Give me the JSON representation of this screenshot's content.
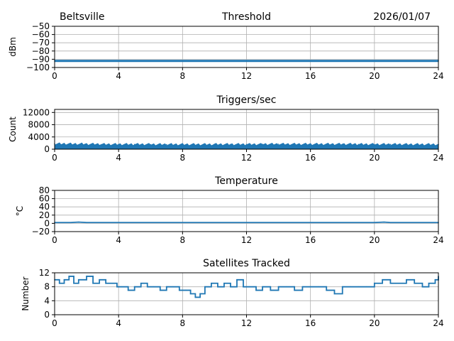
{
  "header": {
    "site": "Beltsville",
    "date": "2026/01/07"
  },
  "style": {
    "series_color": "#1f77b4",
    "grid_color": "#b0b0b0",
    "axis_color": "#000000",
    "background": "#ffffff"
  },
  "chart_data": [
    {
      "type": "line",
      "title": "Threshold",
      "xlabel": "",
      "ylabel": "dBm",
      "xlim": [
        0,
        24
      ],
      "ylim": [
        -100,
        -50
      ],
      "xticks": [
        0,
        4,
        8,
        12,
        16,
        20,
        24
      ],
      "yticks": [
        -100,
        -90,
        -80,
        -70,
        -60,
        -50
      ],
      "ytick_labels": [
        "−100",
        "−90",
        "−80",
        "−70",
        "−60",
        "−50"
      ],
      "grid": true,
      "series": [
        {
          "x": [
            0,
            2,
            4,
            6,
            8,
            10,
            12,
            14,
            16,
            18,
            20,
            22,
            24
          ],
          "values": [
            -92,
            -92,
            -92,
            -92,
            -92,
            -92,
            -92,
            -92,
            -92,
            -92,
            -92,
            -92,
            -92
          ]
        }
      ]
    },
    {
      "type": "area",
      "title": "Triggers/sec",
      "xlabel": "",
      "ylabel": "Count",
      "xlim": [
        0,
        24
      ],
      "ylim": [
        0,
        13000
      ],
      "xticks": [
        0,
        4,
        8,
        12,
        16,
        20,
        24
      ],
      "yticks": [
        0,
        4000,
        8000,
        12000
      ],
      "ytick_labels": [
        "0",
        "4000",
        "8000",
        "12000"
      ],
      "grid": true,
      "series": [
        {
          "x": [
            0,
            1,
            2,
            3,
            4,
            5,
            6,
            7,
            8,
            9,
            10,
            11,
            12,
            13,
            14,
            15,
            16,
            17,
            18,
            19,
            20,
            21,
            22,
            23,
            24
          ],
          "values": [
            1700,
            1650,
            1600,
            1550,
            1550,
            1550,
            1500,
            1500,
            1500,
            1500,
            1550,
            1550,
            1550,
            1600,
            1600,
            1600,
            1600,
            1600,
            1600,
            1550,
            1550,
            1550,
            1500,
            1500,
            1500
          ]
        }
      ]
    },
    {
      "type": "line",
      "title": "Temperature",
      "xlabel": "",
      "ylabel": "°C",
      "xlim": [
        0,
        24
      ],
      "ylim": [
        -20,
        80
      ],
      "xticks": [
        0,
        4,
        8,
        12,
        16,
        20,
        24
      ],
      "yticks": [
        -20,
        0,
        20,
        40,
        60,
        80
      ],
      "ytick_labels": [
        "−20",
        "0",
        "20",
        "40",
        "60",
        "80"
      ],
      "grid": true,
      "series": [
        {
          "x": [
            0,
            1,
            1.5,
            2,
            4,
            8,
            12,
            13.3,
            16,
            20,
            20.6,
            21,
            24
          ],
          "values": [
            2,
            2,
            3,
            2,
            2,
            2,
            2,
            2,
            2,
            2,
            3,
            2,
            2
          ]
        }
      ]
    },
    {
      "type": "line",
      "title": "Satellites Tracked",
      "xlabel": "",
      "ylabel": "Number",
      "xlim": [
        0,
        24
      ],
      "ylim": [
        0,
        12
      ],
      "xticks": [
        0,
        4,
        8,
        12,
        16,
        20,
        24
      ],
      "yticks": [
        0,
        4,
        8,
        12
      ],
      "ytick_labels": [
        "0",
        "4",
        "8",
        "12"
      ],
      "grid": true,
      "series": [
        {
          "step": true,
          "x": [
            0,
            0.3,
            0.6,
            0.9,
            1.2,
            1.5,
            2.0,
            2.4,
            2.8,
            3.2,
            3.6,
            3.9,
            4.2,
            4.6,
            5.0,
            5.4,
            5.8,
            6.2,
            6.6,
            7.0,
            7.4,
            7.8,
            8.2,
            8.5,
            8.8,
            9.1,
            9.4,
            9.8,
            10.2,
            10.6,
            11.0,
            11.4,
            11.8,
            12.2,
            12.6,
            13.0,
            13.5,
            14.0,
            14.5,
            15.0,
            15.5,
            16.0,
            16.5,
            17.0,
            17.5,
            18.0,
            18.5,
            19.0,
            19.5,
            20.0,
            20.5,
            21.0,
            21.5,
            22.0,
            22.5,
            23.0,
            23.4,
            23.8,
            24
          ],
          "values": [
            10,
            9,
            10,
            11,
            9,
            10,
            11,
            9,
            10,
            9,
            9,
            8,
            8,
            7,
            8,
            9,
            8,
            8,
            7,
            8,
            8,
            7,
            7,
            6,
            5,
            6,
            8,
            9,
            8,
            9,
            8,
            10,
            8,
            8,
            7,
            8,
            7,
            8,
            8,
            7,
            8,
            8,
            8,
            7,
            6,
            8,
            8,
            8,
            8,
            9,
            10,
            9,
            9,
            10,
            9,
            8,
            9,
            10,
            11
          ]
        }
      ]
    }
  ]
}
